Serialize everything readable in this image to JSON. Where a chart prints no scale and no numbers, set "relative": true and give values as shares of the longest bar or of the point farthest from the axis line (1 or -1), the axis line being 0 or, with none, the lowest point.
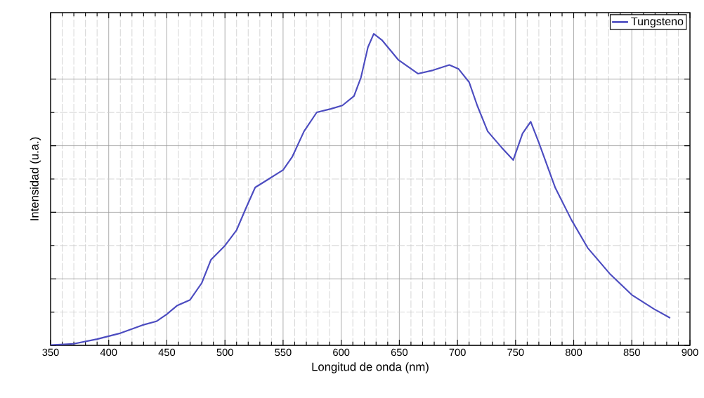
{
  "chart_data": {
    "type": "line",
    "xlabel": "Longitud de onda (nm)",
    "ylabel": "Intensidad (u.a.)",
    "relative": true,
    "xlim": [
      350,
      900
    ],
    "xticks": [
      350,
      400,
      450,
      500,
      550,
      600,
      650,
      700,
      750,
      800,
      850,
      900
    ],
    "grid": true,
    "legend": "top right",
    "series": [
      {
        "name": "Tungsteno",
        "color": "#4c4cc0",
        "x": [
          350,
          370,
          390,
          409,
          429,
          441,
          450,
          459,
          470,
          480,
          488,
          500,
          510,
          518,
          526,
          536,
          550,
          558,
          568,
          579,
          591,
          601,
          611,
          617,
          623,
          628,
          635,
          649,
          666,
          679,
          693,
          701,
          710,
          717,
          726,
          738,
          748,
          756,
          763,
          770,
          784,
          798,
          812,
          831,
          850,
          869,
          883
        ],
        "values": [
          0.001,
          0.005,
          0.02,
          0.038,
          0.065,
          0.077,
          0.1,
          0.128,
          0.146,
          0.2,
          0.275,
          0.32,
          0.37,
          0.44,
          0.507,
          0.53,
          0.563,
          0.606,
          0.687,
          0.748,
          0.759,
          0.77,
          0.8,
          0.86,
          0.957,
          1,
          0.98,
          0.917,
          0.872,
          0.883,
          0.9,
          0.887,
          0.845,
          0.77,
          0.687,
          0.635,
          0.595,
          0.68,
          0.718,
          0.651,
          0.507,
          0.403,
          0.313,
          0.23,
          0.162,
          0.117,
          0.088
        ]
      }
    ]
  }
}
